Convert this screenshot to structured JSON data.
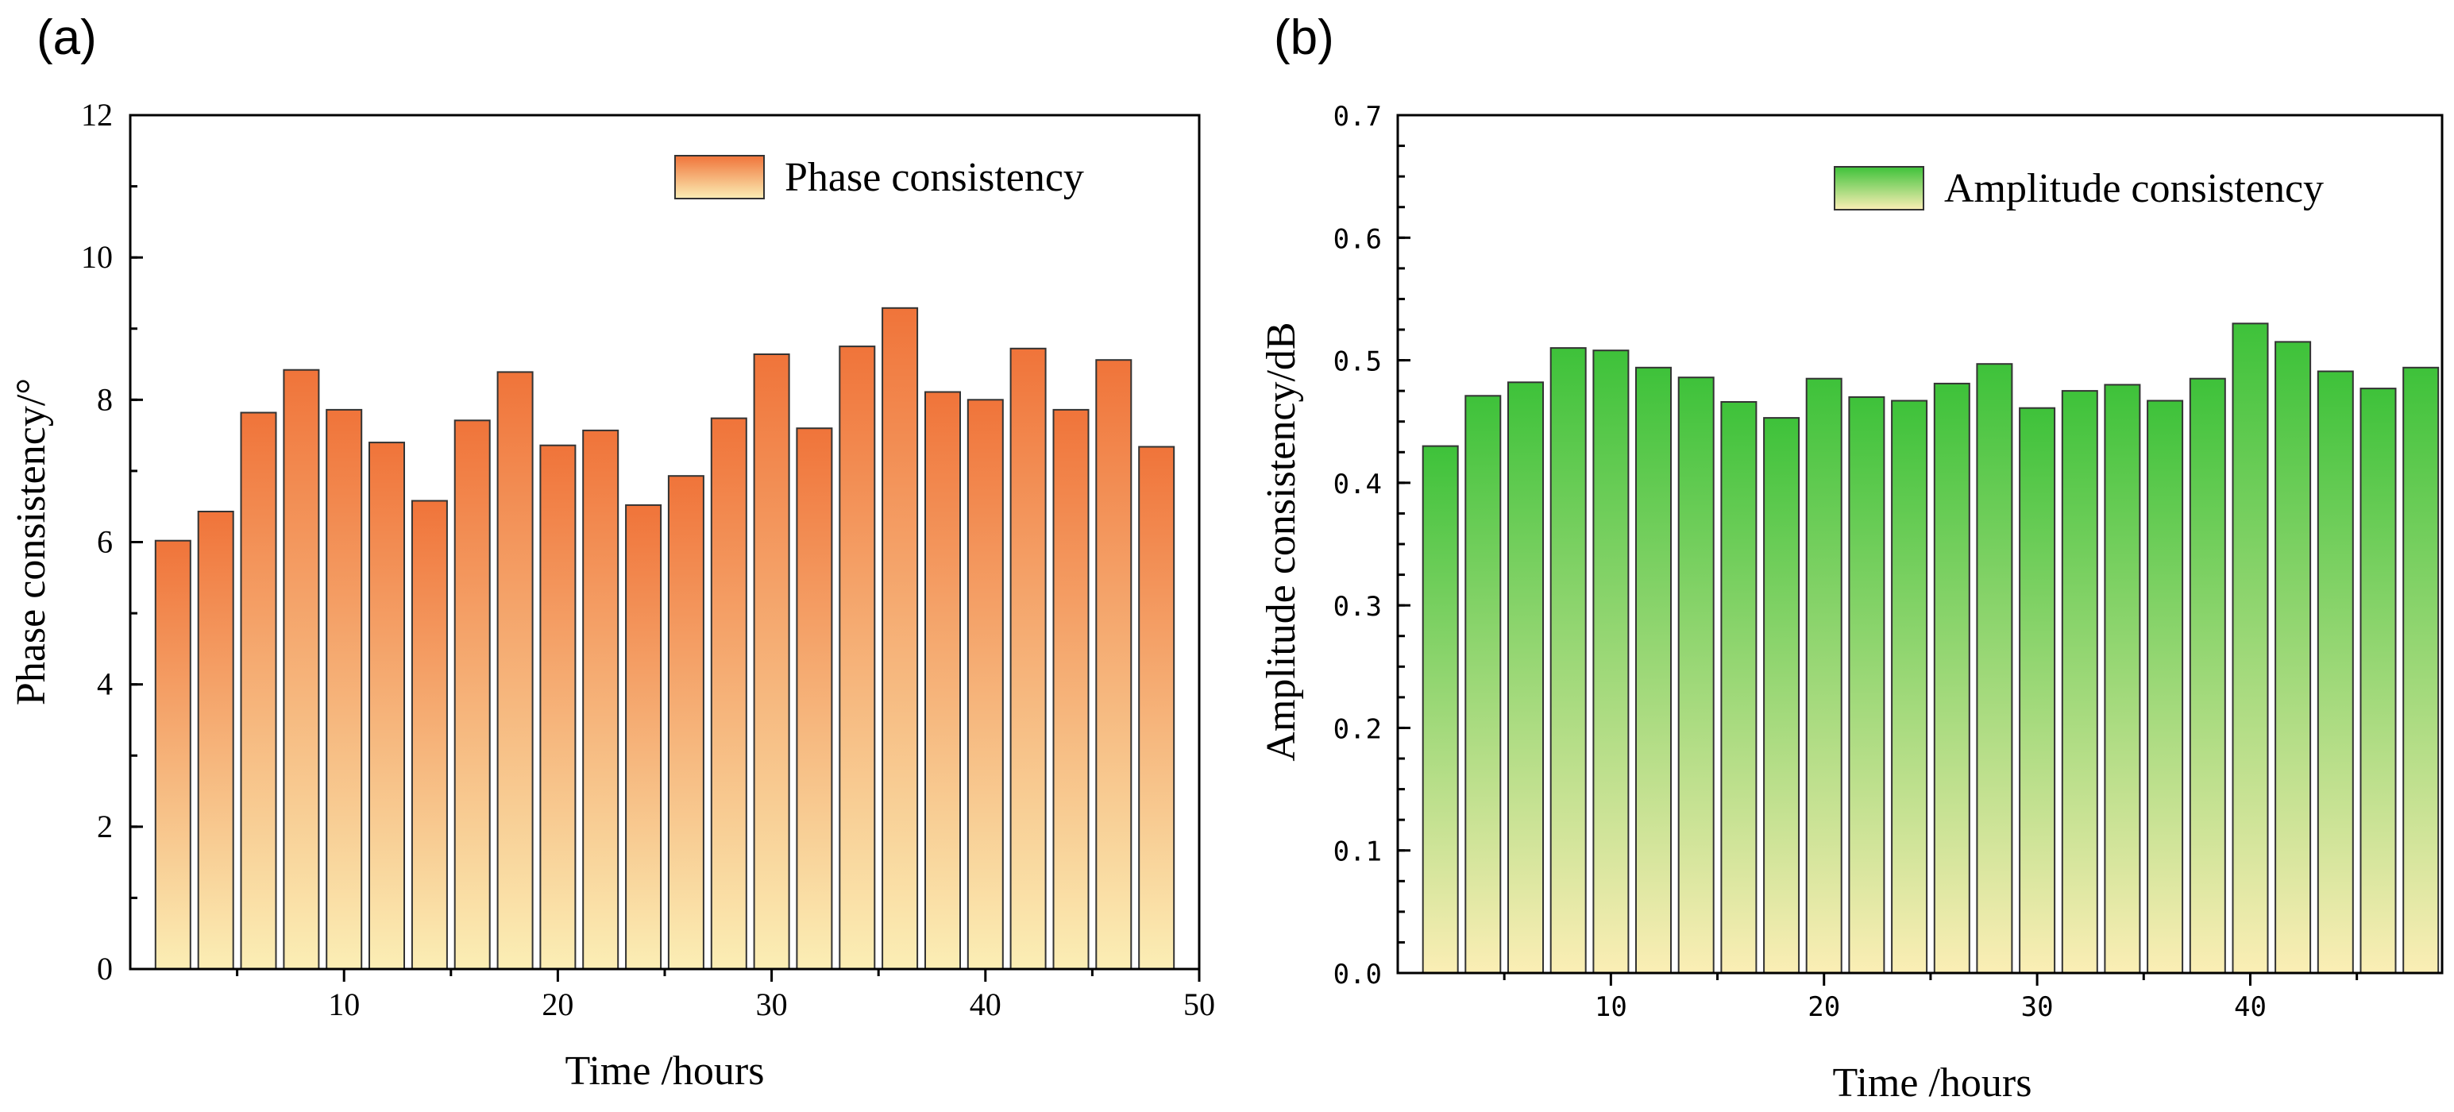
{
  "chart_data": [
    {
      "panel_label": "(a)",
      "type": "bar",
      "title": "",
      "xlabel": "Time /hours",
      "ylabel": "Phase consistency/°",
      "xlim": [
        0,
        50
      ],
      "ylim": [
        0,
        12
      ],
      "xticks": [
        10,
        20,
        30,
        40,
        50
      ],
      "yticks": [
        0,
        2,
        4,
        6,
        8,
        10,
        12
      ],
      "x": [
        2,
        4,
        6,
        8,
        10,
        12,
        14,
        16,
        18,
        20,
        22,
        24,
        26,
        28,
        30,
        32,
        34,
        36,
        38,
        40,
        42,
        44,
        46,
        48
      ],
      "series": [
        {
          "name": "Phase consistency",
          "values": [
            6.02,
            6.43,
            7.82,
            8.42,
            7.86,
            7.4,
            6.58,
            7.71,
            8.39,
            7.36,
            7.57,
            6.52,
            6.93,
            7.74,
            8.64,
            7.6,
            8.75,
            9.29,
            8.11,
            8.0,
            8.72,
            7.86,
            8.56,
            7.34
          ],
          "color_top": "#f0743a",
          "color_bottom": "#fbeeb5"
        }
      ],
      "legend_position": "top-right"
    },
    {
      "panel_label": "(b)",
      "type": "bar",
      "title": "",
      "xlabel": "Time /hours",
      "ylabel": "Amplitude consistency/dB",
      "xlim": [
        0,
        49
      ],
      "ylim": [
        0,
        0.7
      ],
      "xticks": [
        10,
        20,
        30,
        40
      ],
      "yticks": [
        0.0,
        0.1,
        0.2,
        0.3,
        0.4,
        0.5,
        0.6,
        0.7
      ],
      "ytick_labels": [
        "0.0",
        "0.1",
        "0.2",
        "0.3",
        "0.4",
        "0.5",
        "0.6",
        "0.7"
      ],
      "x": [
        2,
        4,
        6,
        8,
        10,
        12,
        14,
        16,
        18,
        20,
        22,
        24,
        26,
        28,
        30,
        32,
        34,
        36,
        38,
        40,
        42,
        44,
        46,
        48
      ],
      "series": [
        {
          "name": "Amplitude consistency",
          "values": [
            0.43,
            0.471,
            0.482,
            0.51,
            0.508,
            0.494,
            0.486,
            0.466,
            0.453,
            0.485,
            0.47,
            0.467,
            0.481,
            0.497,
            0.461,
            0.475,
            0.48,
            0.467,
            0.485,
            0.53,
            0.515,
            0.491,
            0.477,
            0.494
          ],
          "color_top": "#3ec23a",
          "color_bottom": "#fbeeb5"
        }
      ],
      "legend_position": "top-right"
    }
  ]
}
